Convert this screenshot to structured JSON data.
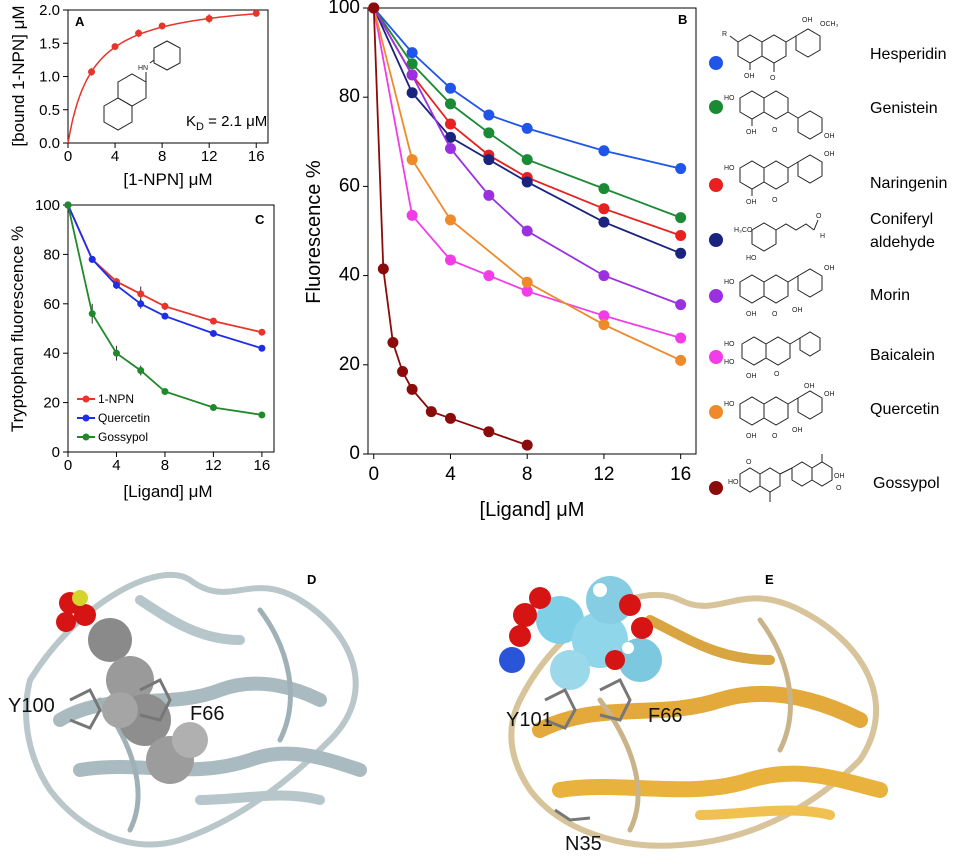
{
  "chart_data": [
    {
      "panel": "A",
      "type": "scatter",
      "xlabel": "[1-NPN] μM",
      "ylabel": "[bound 1-NPN] μM",
      "xlim": [
        0,
        17
      ],
      "ylim": [
        0,
        2.0
      ],
      "xticks": [
        "0",
        "4",
        "8",
        "12",
        "16"
      ],
      "yticks": [
        "0.0",
        "0.5",
        "1.0",
        "1.5",
        "2.0"
      ],
      "annotation": "K_D = 2.1 μM",
      "annotation_main": "K",
      "annotation_sub": "D",
      "annotation_tail": " = 2.1 μM",
      "amine_label": "HN",
      "color": "#e8342a",
      "x": [
        2,
        4,
        6,
        8,
        12,
        16
      ],
      "y": [
        1.07,
        1.45,
        1.65,
        1.76,
        1.87,
        1.95
      ],
      "err": [
        0.06,
        0.05,
        0.06,
        0.04,
        0.07,
        0.02
      ],
      "fit": "binding_hyperbola",
      "fit_kd": 2.1,
      "fit_bmax": 2.2
    },
    {
      "panel": "C",
      "type": "line",
      "xlabel": "[Ligand] μM",
      "ylabel": "Tryptophan fluorescence %",
      "xlim": [
        0,
        17
      ],
      "ylim": [
        0,
        100
      ],
      "xticks": [
        "0",
        "4",
        "8",
        "12",
        "16"
      ],
      "yticks": [
        "0",
        "20",
        "40",
        "60",
        "80",
        "100"
      ],
      "legend_position": "bottom-left",
      "x": [
        0,
        2,
        4,
        6,
        8,
        12,
        16
      ],
      "series": [
        {
          "name": "1-NPN",
          "color": "#e8342a",
          "values": [
            100,
            78,
            69,
            64,
            59,
            53,
            48.5
          ],
          "err": [
            0,
            1,
            1.5,
            3,
            1.5,
            1,
            1
          ]
        },
        {
          "name": "Quercetin",
          "color": "#1e2ee8",
          "values": [
            100,
            78,
            67.5,
            60,
            55,
            48,
            42
          ],
          "err": [
            0,
            1,
            1.5,
            2,
            1,
            1,
            1
          ]
        },
        {
          "name": "Gossypol",
          "color": "#1f8a2a",
          "values": [
            100,
            56,
            40,
            33,
            24.5,
            18,
            15
          ],
          "err": [
            0,
            4,
            3,
            2,
            1,
            1,
            1
          ]
        }
      ]
    },
    {
      "panel": "B",
      "type": "line",
      "xlabel": "[Ligand] μM",
      "ylabel": "Fluorescence %",
      "xlim": [
        -0.3,
        16.8
      ],
      "ylim": [
        0,
        100
      ],
      "xticks": [
        "0",
        "4",
        "8",
        "12",
        "16"
      ],
      "yticks": [
        "0",
        "20",
        "40",
        "60",
        "80",
        "100"
      ],
      "legend_position": "right",
      "series": [
        {
          "name": "Hesperidin",
          "color": "#1f55e8",
          "x": [
            0,
            2,
            4,
            6,
            8,
            12,
            16
          ],
          "values": [
            100,
            90,
            82,
            76,
            73,
            68,
            64
          ]
        },
        {
          "name": "Genistein",
          "color": "#1a8a35",
          "x": [
            0,
            2,
            4,
            6,
            8,
            12,
            16
          ],
          "values": [
            100,
            87.5,
            78.5,
            72,
            66,
            59.5,
            53
          ]
        },
        {
          "name": "Naringenin",
          "color": "#e82020",
          "x": [
            0,
            2,
            4,
            6,
            8,
            12,
            16
          ],
          "values": [
            100,
            85,
            74,
            67,
            62,
            55,
            49
          ]
        },
        {
          "name": "Coniferyl aldehyde",
          "color": "#1a237e",
          "x": [
            0,
            2,
            4,
            6,
            8,
            12,
            16
          ],
          "values": [
            100,
            81,
            71,
            66,
            61,
            52,
            45
          ]
        },
        {
          "name": "Morin",
          "color": "#9b30e0",
          "x": [
            0,
            2,
            4,
            6,
            8,
            12,
            16
          ],
          "values": [
            100,
            85,
            68.5,
            58,
            50,
            40,
            33.5
          ]
        },
        {
          "name": "Baicalein",
          "color": "#f23ce8",
          "x": [
            0,
            2,
            4,
            6,
            8,
            12,
            16
          ],
          "values": [
            100,
            53.5,
            43.5,
            40,
            36.5,
            31,
            26
          ]
        },
        {
          "name": "Quercetin",
          "color": "#ef8a2a",
          "x": [
            0,
            2,
            4,
            8,
            12,
            16
          ],
          "values": [
            100,
            66,
            52.5,
            38.5,
            29,
            21
          ]
        },
        {
          "name": "Gossypol",
          "color": "#8b0a0a",
          "x": [
            0,
            0.5,
            1,
            1.5,
            2,
            3,
            4,
            6,
            8
          ],
          "values": [
            100,
            41.5,
            25,
            18.5,
            14.5,
            9.5,
            8,
            5,
            2
          ]
        }
      ],
      "legend_names": [
        "Hesperidin",
        "Genistein",
        "Naringenin",
        "Coniferyl",
        "aldehyde",
        "Morin",
        "Baicalein",
        "Quercetin",
        "Gossypol"
      ]
    }
  ],
  "panel_labels": {
    "a": "A",
    "b": "B",
    "c": "C",
    "d": "D",
    "e": "E"
  },
  "structure_labels": {
    "d_res1": "Y100",
    "d_res2": "F66",
    "e_res1": "Y101",
    "e_res2": "F66",
    "e_res3": "N35"
  },
  "chem_labels": {
    "oh": "OH",
    "och3": "OCH₃",
    "o": "O",
    "r": "R",
    "h3co": "H₃CO",
    "h": "H",
    "ho": "HO"
  }
}
